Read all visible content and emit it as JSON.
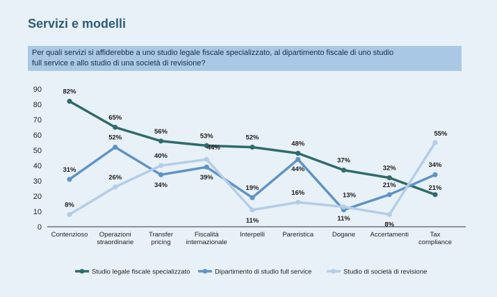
{
  "header": {
    "title": "Servizi e modelli"
  },
  "question": {
    "line1": "Per quali servizi si affiderebbe a uno studio legale fiscale specializzato, al dipartimento fiscale di uno studio",
    "line2": "full service e allo studio di una società di revisione?"
  },
  "chart_data": {
    "type": "line",
    "categories": [
      [
        "Contenzioso"
      ],
      [
        "Operazioni",
        "straordinarie"
      ],
      [
        "Transfer",
        "pricing"
      ],
      [
        "Fiscalità",
        "internazionale"
      ],
      [
        "Interpelli"
      ],
      [
        "Pareristica"
      ],
      [
        "Dogane"
      ],
      [
        "Accertamenti"
      ],
      [
        "Tax",
        "compliance"
      ]
    ],
    "ylim": [
      0,
      90
    ],
    "yticks": [
      0,
      10,
      20,
      30,
      40,
      50,
      60,
      70,
      80,
      90
    ],
    "series": [
      {
        "name": "Studio legale fiscale specializzato",
        "color": "#2f6b6b",
        "values": [
          82,
          65,
          56,
          53,
          52,
          48,
          37,
          32,
          21
        ],
        "labels": [
          "82%",
          "65%",
          "56%",
          "53%",
          "52%",
          "48%",
          "37%",
          "32%",
          "21%"
        ]
      },
      {
        "name": "Dipartimento di studio full service",
        "color": "#5e93c6",
        "values": [
          31,
          52,
          34,
          39,
          19,
          44,
          11,
          21,
          34
        ],
        "labels": [
          "31%",
          "52%",
          "34%",
          "39%",
          "19%",
          "44%",
          "11%",
          "21%",
          "34%"
        ]
      },
      {
        "name": "Studio di società di revisione",
        "color": "#b3cde8",
        "values": [
          8,
          26,
          40,
          44,
          11,
          16,
          13,
          8,
          55
        ],
        "labels": [
          "8%",
          "26%",
          "40%",
          "44%",
          "11%",
          "16%",
          "13%",
          "8%",
          "55%"
        ]
      }
    ],
    "legend_position": "bottom"
  }
}
